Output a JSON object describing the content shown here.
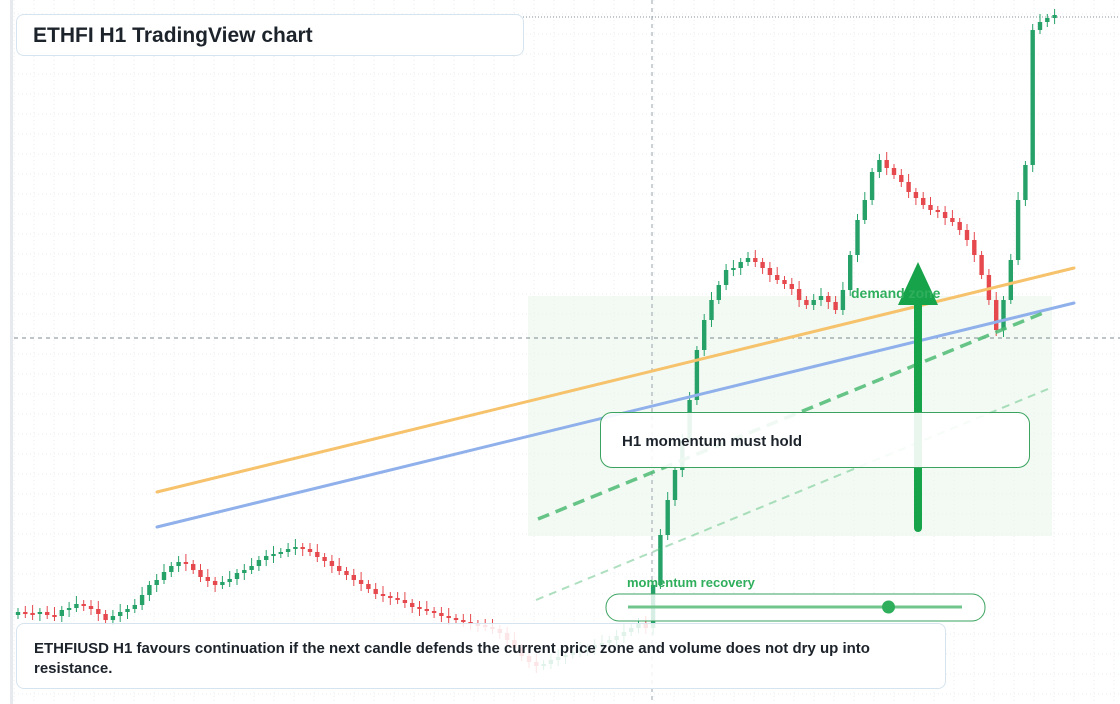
{
  "header": {
    "title": "ETHFI H1 TradingView chart"
  },
  "annotations": {
    "note": "H1 momentum must hold",
    "demand_zone": "demand zone",
    "momentum_recovery": "momentum recovery",
    "momentum_level": 0.78
  },
  "caption": "ETHFIUSD H1 favours continuation if the next candle defends the current price zone and volume does not dry up into resistance.",
  "colors": {
    "up": "#26a269",
    "down": "#e5484d",
    "upper_trendline": "#f6c26b",
    "lower_trendline": "#8fb0ea",
    "support_dashed": "#4dbb74",
    "arrow": "#17a34a",
    "zone": "#e8f6ea"
  },
  "chart_data": {
    "type": "candlestick",
    "timeframe": "H1",
    "symbol": "ETHFIUSD",
    "grid": true,
    "y_axis_labels": "none",
    "series": [
      {
        "name": "",
        "values": [
          612,
          613,
          614,
          612,
          615,
          616,
          610,
          608,
          604,
          606,
          609,
          614,
          620,
          616,
          612,
          609,
          605,
          595,
          585,
          580,
          572,
          566,
          562,
          564,
          570,
          577,
          581,
          585,
          582,
          579,
          573,
          570,
          566,
          560,
          556,
          554,
          552,
          549,
          547,
          549,
          552,
          557,
          561,
          566,
          571,
          575,
          580,
          584,
          589,
          594,
          596,
          598,
          600,
          603,
          607,
          609,
          611,
          613,
          616,
          618,
          620,
          622,
          624,
          625,
          627,
          629,
          633,
          640,
          648,
          656,
          662,
          666,
          664,
          660,
          657,
          655,
          652,
          650,
          648,
          645,
          643,
          640,
          636,
          632,
          628,
          624,
          628,
          585,
          535,
          500,
          470,
          440,
          400,
          350,
          320,
          300,
          285,
          270,
          268,
          262,
          258,
          262,
          268,
          275,
          280,
          284,
          289,
          300,
          305,
          300,
          296,
          302,
          310,
          290,
          255,
          220,
          200,
          172,
          160,
          168,
          175,
          182,
          192,
          198,
          205,
          210,
          212,
          218,
          222,
          230,
          240,
          255,
          275,
          300,
          330,
          300,
          260,
          200,
          165,
          30,
          22,
          18,
          15
        ]
      }
    ],
    "lines": {
      "upper_trendline": "ascending resistance",
      "lower_trendline": "ascending support",
      "dashed_support": "momentum support"
    }
  }
}
